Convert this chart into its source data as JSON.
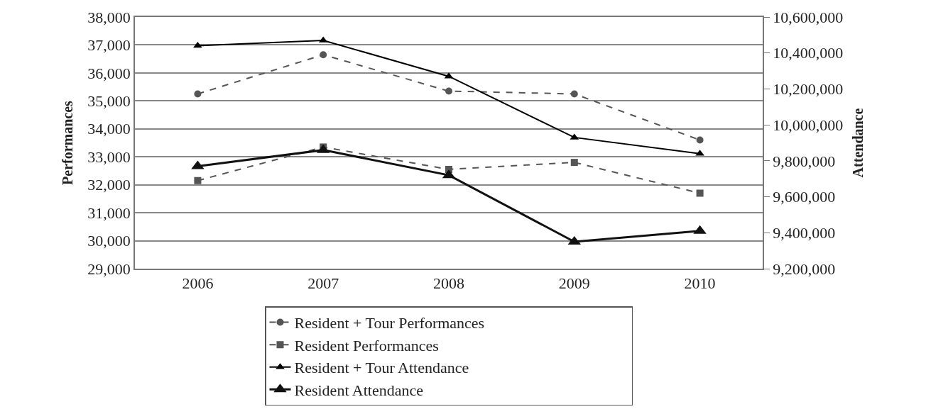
{
  "chart_data": {
    "type": "line",
    "ylabel": "Performances",
    "y2label": "Attendance",
    "categories": [
      "2006",
      "2007",
      "2008",
      "2009",
      "2010"
    ],
    "ylim": [
      29000,
      38000
    ],
    "yticks": [
      {
        "value": 29000,
        "label": "29,000"
      },
      {
        "value": 30000,
        "label": "30,000"
      },
      {
        "value": 31000,
        "label": "31,000"
      },
      {
        "value": 32000,
        "label": "32,000"
      },
      {
        "value": 33000,
        "label": "33,000"
      },
      {
        "value": 34000,
        "label": "34,000"
      },
      {
        "value": 35000,
        "label": "35,000"
      },
      {
        "value": 36000,
        "label": "36,000"
      },
      {
        "value": 37000,
        "label": "37,000"
      },
      {
        "value": 38000,
        "label": "38,000"
      }
    ],
    "y2lim": [
      9200000,
      10600000
    ],
    "y2ticks": [
      {
        "value": 9200000,
        "label": "9,200,000"
      },
      {
        "value": 9400000,
        "label": "9,400,000"
      },
      {
        "value": 9600000,
        "label": "9,600,000"
      },
      {
        "value": 9800000,
        "label": "9,800,000"
      },
      {
        "value": 10000000,
        "label": "10,000,000"
      },
      {
        "value": 10200000,
        "label": "10,200,000"
      },
      {
        "value": 10400000,
        "label": "10,400,000"
      },
      {
        "value": 10600000,
        "label": "10,600,000"
      }
    ],
    "grid": "y",
    "legend": "bottom",
    "series": [
      {
        "name": "Resident + Tour Performances",
        "color": "#555555",
        "marker": "circle",
        "line_style": "dashed",
        "values": [
          35250,
          36650,
          35350,
          35250,
          33600
        ]
      },
      {
        "name": "Resident Performances",
        "color": "#555555",
        "marker": "square",
        "line_style": "dashed",
        "values": [
          32150,
          33350,
          32550,
          32800,
          31700
        ]
      },
      {
        "name": "Resident + Tour Attendance",
        "color": "#000000",
        "marker": "triangle",
        "line_style": "solid",
        "axis": "y2",
        "values": [
          10440000,
          10470000,
          10270000,
          9930000,
          9840000
        ]
      },
      {
        "name": "Resident Attendance",
        "color": "#111111",
        "marker": "triangle",
        "line_style": "solid",
        "axis": "y2",
        "values": [
          9770000,
          9860000,
          9720000,
          9350000,
          9410000
        ]
      }
    ]
  }
}
